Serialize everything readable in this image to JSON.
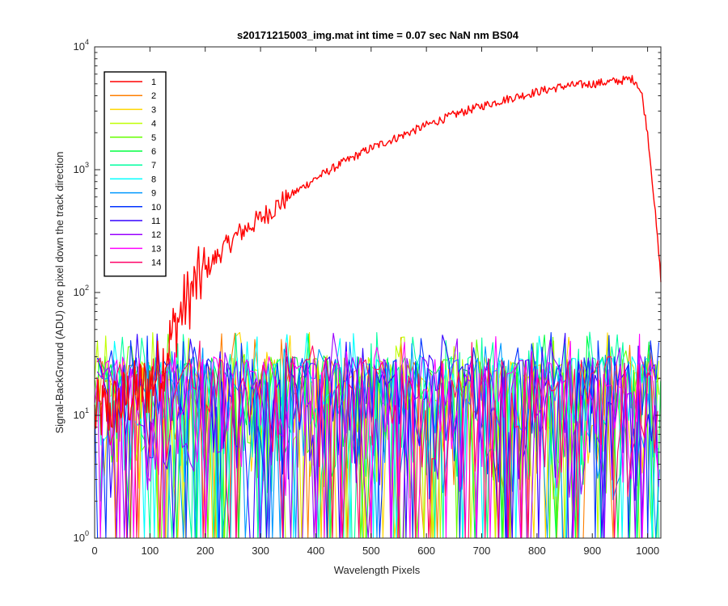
{
  "chart_data": {
    "type": "line",
    "title": "s20171215003_img.mat int time = 0.07 sec  NaN nm BS04",
    "xlabel": "Wavelength Pixels",
    "ylabel": "Signal-BackGround (ADU) one pixel down the track direction",
    "xlim": [
      0,
      1024
    ],
    "ylim": [
      1,
      10000
    ],
    "yscale": "log",
    "x_ticks": [
      "0",
      "100",
      "200",
      "300",
      "400",
      "500",
      "600",
      "700",
      "800",
      "900",
      "1000"
    ],
    "y_ticks": [
      {
        "base": "10",
        "exp": "0"
      },
      {
        "base": "10",
        "exp": "1"
      },
      {
        "base": "10",
        "exp": "2"
      },
      {
        "base": "10",
        "exp": "3"
      },
      {
        "base": "10",
        "exp": "4"
      }
    ],
    "legend_position": "top-left",
    "grid": false,
    "series": [
      {
        "name": "1",
        "color": "#ff0000",
        "kind": "signal",
        "points": [
          [
            0,
            10
          ],
          [
            40,
            12
          ],
          [
            80,
            16
          ],
          [
            100,
            18
          ],
          [
            120,
            25
          ],
          [
            140,
            45
          ],
          [
            160,
            75
          ],
          [
            180,
            110
          ],
          [
            200,
            150
          ],
          [
            230,
            220
          ],
          [
            260,
            300
          ],
          [
            300,
            400
          ],
          [
            350,
            600
          ],
          [
            400,
            850
          ],
          [
            450,
            1150
          ],
          [
            500,
            1500
          ],
          [
            550,
            1850
          ],
          [
            600,
            2300
          ],
          [
            650,
            2800
          ],
          [
            700,
            3300
          ],
          [
            750,
            3800
          ],
          [
            800,
            4300
          ],
          [
            850,
            4800
          ],
          [
            900,
            5000
          ],
          [
            950,
            5300
          ],
          [
            970,
            5500
          ],
          [
            980,
            5200
          ],
          [
            990,
            4000
          ],
          [
            1000,
            2000
          ],
          [
            1010,
            700
          ],
          [
            1024,
            130
          ]
        ]
      },
      {
        "name": "2",
        "color": "#ff7f00",
        "kind": "noise"
      },
      {
        "name": "3",
        "color": "#ffd700",
        "kind": "noise"
      },
      {
        "name": "4",
        "color": "#bfff00",
        "kind": "noise"
      },
      {
        "name": "5",
        "color": "#66ff00",
        "kind": "noise"
      },
      {
        "name": "6",
        "color": "#00ff40",
        "kind": "noise"
      },
      {
        "name": "7",
        "color": "#00ffa0",
        "kind": "noise"
      },
      {
        "name": "8",
        "color": "#00ffff",
        "kind": "noise"
      },
      {
        "name": "9",
        "color": "#0099ff",
        "kind": "noise"
      },
      {
        "name": "10",
        "color": "#0033ff",
        "kind": "noise"
      },
      {
        "name": "11",
        "color": "#3300ff",
        "kind": "noise"
      },
      {
        "name": "12",
        "color": "#9900ff",
        "kind": "noise"
      },
      {
        "name": "13",
        "color": "#ff00ff",
        "kind": "noise"
      },
      {
        "name": "14",
        "color": "#ff0066",
        "kind": "noise"
      }
    ],
    "noise_band": {
      "typical_range": [
        2,
        30
      ],
      "max_spikes": 48
    }
  }
}
